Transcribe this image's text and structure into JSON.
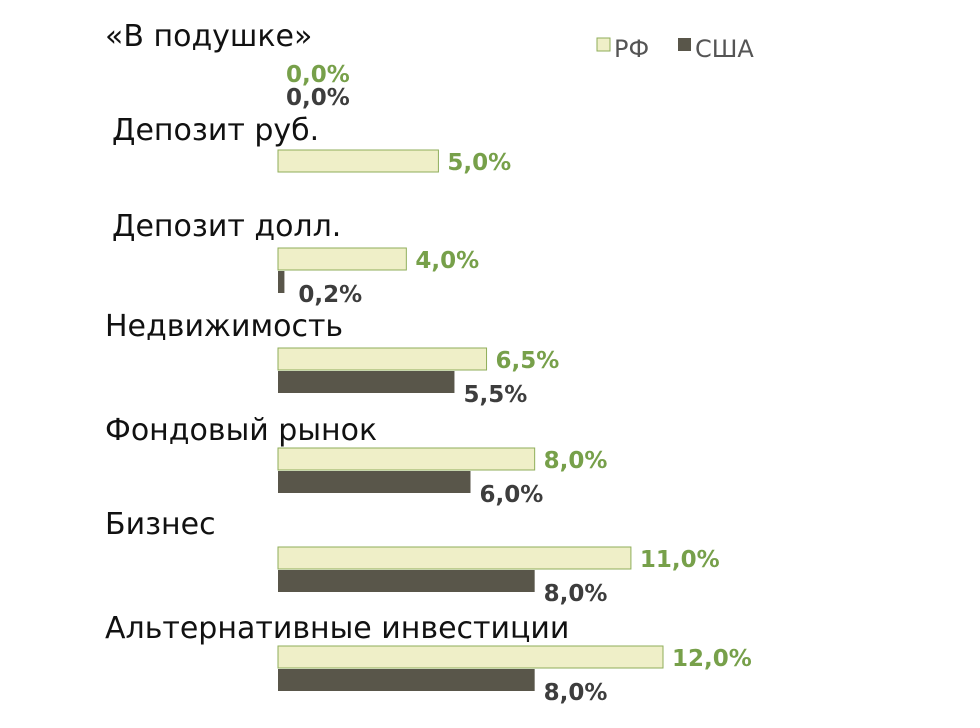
{
  "chart_data": {
    "type": "bar",
    "orientation": "horizontal",
    "categories": [
      "«В подушке»",
      "Депозит руб.",
      "Депозит долл.",
      "Недвижимость",
      "Фондовый рынок",
      "Бизнес",
      "Альтернативные инвестиции"
    ],
    "series": [
      {
        "name": "РФ",
        "color": "#efefc8",
        "stroke": "#8fae5a",
        "label_color": "#77a04a",
        "values": [
          0.0,
          5.0,
          4.0,
          6.5,
          8.0,
          11.0,
          12.0
        ],
        "labels": [
          "0,0%",
          "5,0%",
          "4,0%",
          "6,5%",
          "8,0%",
          "11,0%",
          "12,0%"
        ]
      },
      {
        "name": "США",
        "color": "#59564a",
        "stroke": "#59564a",
        "label_color": "#3d3d3d",
        "values": [
          0.0,
          null,
          0.2,
          5.5,
          6.0,
          8.0,
          8.0
        ],
        "labels": [
          "0,0%",
          "",
          "0,2%",
          "5,5%",
          "6,0%",
          "8,0%",
          "8,0%"
        ]
      }
    ],
    "xlim": [
      0,
      12
    ],
    "grid": false,
    "legend_position": "top-right"
  }
}
